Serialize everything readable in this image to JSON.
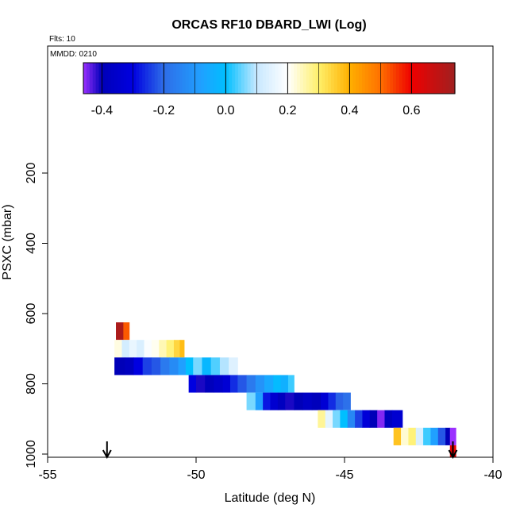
{
  "chart_data": {
    "type": "heatmap",
    "title": "ORCAS RF10 DBARD_LWI (Log)",
    "flights_note": "Flts: 10",
    "date_note": "MMDD: 0210",
    "xlabel": "Latitude (deg N)",
    "ylabel": "PSXC (mbar)",
    "xlim": [
      -55,
      -40
    ],
    "ylim": [
      1010,
      0
    ],
    "x_ticks": [
      "-55",
      "-50",
      "-45",
      "-40"
    ],
    "y_ticks": [
      "200",
      "400",
      "600",
      "800",
      "1000"
    ],
    "colorbar": {
      "range": [
        -0.46,
        0.74
      ],
      "ticks": [
        "-0.4",
        "-0.2",
        "0.0",
        "0.2",
        "0.4",
        "0.6"
      ],
      "stops": [
        {
          "v": -0.46,
          "c": "#9b30ff"
        },
        {
          "v": -0.4,
          "c": "#0000b8"
        },
        {
          "v": -0.3,
          "c": "#0000e0"
        },
        {
          "v": -0.2,
          "c": "#2e6de8"
        },
        {
          "v": -0.08,
          "c": "#20a0ff"
        },
        {
          "v": 0.0,
          "c": "#00bfff"
        },
        {
          "v": 0.1,
          "c": "#c8e8ff"
        },
        {
          "v": 0.2,
          "c": "#ffffff"
        },
        {
          "v": 0.3,
          "c": "#fff06a"
        },
        {
          "v": 0.4,
          "c": "#ffb000"
        },
        {
          "v": 0.5,
          "c": "#ff7000"
        },
        {
          "v": 0.6,
          "c": "#ee0000"
        },
        {
          "v": 0.74,
          "c": "#a02020"
        }
      ]
    },
    "rows": [
      {
        "p_top": 625,
        "p_bot": 675,
        "cells": [
          {
            "x0": -52.7,
            "x1": -52.45,
            "v": 0.72
          },
          {
            "x0": -52.45,
            "x1": -52.25,
            "v": 0.52
          }
        ]
      },
      {
        "p_top": 675,
        "p_bot": 725,
        "cells": [
          {
            "x0": -52.75,
            "x1": -52.5,
            "v": 0.22
          },
          {
            "x0": -52.5,
            "x1": -52.25,
            "v": 0.12
          },
          {
            "x0": -52.25,
            "x1": -52.0,
            "v": 0.16
          },
          {
            "x0": -52.0,
            "x1": -51.75,
            "v": 0.13
          },
          {
            "x0": -51.75,
            "x1": -51.5,
            "v": 0.19
          },
          {
            "x0": -51.5,
            "x1": -51.25,
            "v": 0.21
          },
          {
            "x0": -51.25,
            "x1": -51.0,
            "v": 0.25
          },
          {
            "x0": -51.0,
            "x1": -50.75,
            "v": 0.29
          },
          {
            "x0": -50.75,
            "x1": -50.55,
            "v": 0.34
          },
          {
            "x0": -50.55,
            "x1": -50.4,
            "v": 0.38
          }
        ]
      },
      {
        "p_top": 725,
        "p_bot": 775,
        "cells": [
          {
            "x0": -52.75,
            "x1": -52.4,
            "v": -0.4
          },
          {
            "x0": -52.4,
            "x1": -52.1,
            "v": -0.38
          },
          {
            "x0": -52.1,
            "x1": -51.8,
            "v": -0.3
          },
          {
            "x0": -51.8,
            "x1": -51.5,
            "v": -0.24
          },
          {
            "x0": -51.5,
            "x1": -51.2,
            "v": -0.22
          },
          {
            "x0": -51.2,
            "x1": -50.9,
            "v": -0.17
          },
          {
            "x0": -50.9,
            "x1": -50.6,
            "v": -0.13
          },
          {
            "x0": -50.6,
            "x1": -50.35,
            "v": -0.08
          },
          {
            "x0": -50.35,
            "x1": -50.1,
            "v": 0.0
          },
          {
            "x0": -50.1,
            "x1": -49.8,
            "v": 0.06
          },
          {
            "x0": -49.8,
            "x1": -49.5,
            "v": -0.02
          },
          {
            "x0": -49.5,
            "x1": -49.2,
            "v": 0.04
          },
          {
            "x0": -49.2,
            "x1": -48.9,
            "v": 0.09
          },
          {
            "x0": -48.9,
            "x1": -48.6,
            "v": 0.14
          }
        ]
      },
      {
        "p_top": 775,
        "p_bot": 825,
        "cells": [
          {
            "x0": -50.25,
            "x1": -50.0,
            "v": -0.3
          },
          {
            "x0": -50.0,
            "x1": -49.7,
            "v": -0.41
          },
          {
            "x0": -49.7,
            "x1": -49.4,
            "v": -0.39
          },
          {
            "x0": -49.4,
            "x1": -49.1,
            "v": -0.36
          },
          {
            "x0": -49.1,
            "x1": -48.85,
            "v": -0.33
          },
          {
            "x0": -48.85,
            "x1": -48.6,
            "v": -0.26
          },
          {
            "x0": -48.6,
            "x1": -48.3,
            "v": -0.22
          },
          {
            "x0": -48.3,
            "x1": -48.0,
            "v": -0.17
          },
          {
            "x0": -48.0,
            "x1": -47.7,
            "v": -0.11
          },
          {
            "x0": -47.7,
            "x1": -47.4,
            "v": -0.06
          },
          {
            "x0": -47.4,
            "x1": -47.15,
            "v": -0.01
          },
          {
            "x0": -47.15,
            "x1": -46.9,
            "v": -0.04
          },
          {
            "x0": -46.9,
            "x1": -46.7,
            "v": 0.03
          }
        ]
      },
      {
        "p_top": 825,
        "p_bot": 875,
        "cells": [
          {
            "x0": -48.3,
            "x1": -48.0,
            "v": 0.06
          },
          {
            "x0": -48.0,
            "x1": -47.75,
            "v": -0.08
          },
          {
            "x0": -47.75,
            "x1": -47.5,
            "v": -0.28
          },
          {
            "x0": -47.5,
            "x1": -47.25,
            "v": -0.34
          },
          {
            "x0": -47.25,
            "x1": -47.0,
            "v": -0.38
          },
          {
            "x0": -47.0,
            "x1": -46.7,
            "v": -0.41
          },
          {
            "x0": -46.7,
            "x1": -46.4,
            "v": -0.4
          },
          {
            "x0": -46.4,
            "x1": -46.1,
            "v": -0.37
          },
          {
            "x0": -46.1,
            "x1": -45.8,
            "v": -0.39
          },
          {
            "x0": -45.8,
            "x1": -45.55,
            "v": -0.33
          },
          {
            "x0": -45.55,
            "x1": -45.3,
            "v": -0.26
          },
          {
            "x0": -45.3,
            "x1": -45.05,
            "v": -0.21
          },
          {
            "x0": -45.05,
            "x1": -44.8,
            "v": -0.19
          }
        ]
      },
      {
        "p_top": 875,
        "p_bot": 925,
        "cells": [
          {
            "x0": -45.9,
            "x1": -45.65,
            "v": 0.27
          },
          {
            "x0": -45.65,
            "x1": -45.4,
            "v": 0.15
          },
          {
            "x0": -45.4,
            "x1": -45.15,
            "v": 0.06
          },
          {
            "x0": -45.15,
            "x1": -44.9,
            "v": 0.0
          },
          {
            "x0": -44.9,
            "x1": -44.65,
            "v": -0.14
          },
          {
            "x0": -44.65,
            "x1": -44.4,
            "v": -0.24
          },
          {
            "x0": -44.4,
            "x1": -44.15,
            "v": -0.32
          },
          {
            "x0": -44.15,
            "x1": -43.9,
            "v": -0.4
          },
          {
            "x0": -43.9,
            "x1": -43.65,
            "v": -0.45
          },
          {
            "x0": -43.65,
            "x1": -43.4,
            "v": -0.38
          },
          {
            "x0": -43.4,
            "x1": -43.05,
            "v": -0.34
          }
        ]
      },
      {
        "p_top": 925,
        "p_bot": 975,
        "cells": [
          {
            "x0": -43.35,
            "x1": -43.1,
            "v": 0.37
          },
          {
            "x0": -43.1,
            "x1": -42.85,
            "v": 0.23
          },
          {
            "x0": -42.85,
            "x1": -42.6,
            "v": 0.29
          },
          {
            "x0": -42.6,
            "x1": -42.35,
            "v": 0.13
          },
          {
            "x0": -42.35,
            "x1": -42.1,
            "v": 0.03
          },
          {
            "x0": -42.1,
            "x1": -41.85,
            "v": -0.08
          },
          {
            "x0": -41.85,
            "x1": -41.6,
            "v": -0.22
          },
          {
            "x0": -41.6,
            "x1": -41.45,
            "v": -0.4
          },
          {
            "x0": -41.45,
            "x1": -41.25,
            "v": -0.46
          }
        ]
      },
      {
        "p_top": 975,
        "p_bot": 1010,
        "cells": [
          {
            "x0": -41.45,
            "x1": -41.25,
            "v": 0.62
          }
        ]
      }
    ],
    "markers": [
      {
        "x": -53.0,
        "p": 1005
      },
      {
        "x": -41.35,
        "p": 1005
      }
    ]
  }
}
